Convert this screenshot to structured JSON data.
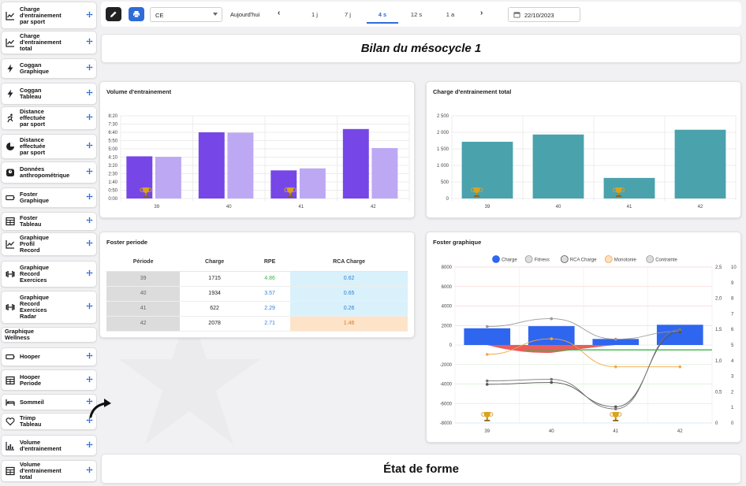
{
  "colors": {
    "accent": "#2f6bd8",
    "volume_bar": "#7647e6",
    "volume_bar_light": "#bda8f3",
    "total_bar": "#4aa2ad",
    "charge_blue": "#2f66ef",
    "negative_red": "#e84a4a",
    "fitness_line": "#999999",
    "rca_line": "#555555",
    "monotonie_line": "#f4a640",
    "contrainte_line": "#777777"
  },
  "sidebar": {
    "items": [
      {
        "label": "Charge\nd'entrainement\npar sport",
        "icon": "trend-chart-icon"
      },
      {
        "label": "Charge\nd'entrainement\ntotal",
        "icon": "trend-chart-icon"
      },
      {
        "label": "Coggan\nGraphique",
        "icon": "lightning-icon"
      },
      {
        "label": "Coggan\nTableau",
        "icon": "lightning-icon"
      },
      {
        "label": "Distance\neffectuée\npar sport",
        "icon": "runner-icon"
      },
      {
        "label": "Distance\neffectuée\npar sport",
        "icon": "pie-chart-icon"
      },
      {
        "label": "Données\nanthropométrique",
        "icon": "scale-icon"
      },
      {
        "label": "Foster\nGraphique",
        "icon": "battery-icon"
      },
      {
        "label": "Foster\nTableau",
        "icon": "table-icon"
      },
      {
        "label": "Graphique\nProfil\nRecord",
        "icon": "trend-chart-icon"
      },
      {
        "label": "Graphique\nRecord\nExercices",
        "icon": "dumbbell-icon"
      },
      {
        "label": "Graphique\nRecord\nExercices\nRadar",
        "icon": "dumbbell-icon"
      },
      {
        "label": "Graphique\nWellness",
        "icon": ""
      },
      {
        "label": "Hooper",
        "icon": "battery-icon"
      },
      {
        "label": "Hooper\nPeriode",
        "icon": "table-icon"
      },
      {
        "label": "Sommeil",
        "icon": "bed-icon"
      },
      {
        "label": "Trimp\nTableau",
        "icon": "heart-icon"
      },
      {
        "label": "Volume\nd'entrainement",
        "icon": "bar-chart-icon"
      },
      {
        "label": "Volume\nd'entrainement\ntotal",
        "icon": "table-icon"
      }
    ]
  },
  "toolbar": {
    "select_value": "CE",
    "today_label": "Aujourd'hui",
    "prev_icon": "chevron-left-icon",
    "next_icon": "chevron-right-icon",
    "periods": [
      "1 j",
      "7 j",
      "4 s",
      "12 s",
      "1 a"
    ],
    "active_period": "4 s",
    "date_value": "22/10/2023"
  },
  "sections": {
    "mesocycle_title": "Bilan du mésocycle 1",
    "form_title": "État de forme"
  },
  "cards": {
    "volume_title": "Volume d'entrainement",
    "total_title": "Charge d'entrainement total",
    "foster_period_title": "Foster periode",
    "foster_graph_title": "Foster graphique"
  },
  "foster_table": {
    "headers": [
      "Période",
      "Charge",
      "RPE",
      "RCA Charge"
    ],
    "rows": [
      {
        "periode": "39",
        "charge": "1715",
        "rpe": "4.86",
        "rca": "0.62",
        "rpe_color": "#3bb54a",
        "rca_warn": false
      },
      {
        "periode": "40",
        "charge": "1934",
        "rpe": "3.57",
        "rca": "0.65",
        "rpe_color": "#2f7fd8",
        "rca_warn": false
      },
      {
        "periode": "41",
        "charge": "622",
        "rpe": "2.29",
        "rca": "0.26",
        "rpe_color": "#2f7fd8",
        "rca_warn": false
      },
      {
        "periode": "42",
        "charge": "2078",
        "rpe": "2.71",
        "rca": "1.46",
        "rpe_color": "#2f7fd8",
        "rca_warn": true
      }
    ]
  },
  "chart_data": [
    {
      "type": "bar",
      "title": "Volume d'entrainement",
      "categories": [
        "39",
        "40",
        "41",
        "42"
      ],
      "y_ticks": [
        "0:00",
        "0:50",
        "1:40",
        "2:30",
        "3:20",
        "4:10",
        "5:00",
        "5:50",
        "6:40",
        "7:30",
        "8:20"
      ],
      "ylim_minutes": [
        0,
        500
      ],
      "series": [
        {
          "values_minutes": [
            255,
            400,
            170,
            420
          ]
        },
        {
          "values_minutes": [
            252,
            398,
            182,
            305
          ]
        }
      ],
      "trophy_icon": "trophy-icon",
      "trophy_categories": [
        "39",
        "41"
      ]
    },
    {
      "type": "bar",
      "title": "Charge d'entrainement total",
      "categories": [
        "39",
        "40",
        "41",
        "42"
      ],
      "y_ticks": [
        "0",
        "500",
        "1 000",
        "1 500",
        "2 000",
        "2 500"
      ],
      "ylim": [
        0,
        2500
      ],
      "values": [
        1715,
        1934,
        622,
        2078
      ],
      "trophy_icon": "trophy-icon",
      "trophy_categories": [
        "39",
        "41"
      ]
    },
    {
      "type": "line",
      "title": "Foster graphique",
      "legend": [
        "Charge",
        "Fitness",
        "RCA Charge",
        "Monotonie",
        "Contrainte"
      ],
      "categories": [
        "39",
        "40",
        "41",
        "42"
      ],
      "y_left_ticks": [
        "-8000",
        "-6000",
        "-4000",
        "-2000",
        "0",
        "2000",
        "4000",
        "6000",
        "8000"
      ],
      "ylim_left": [
        -8000,
        8000
      ],
      "y_right1_ticks": [
        "0",
        "0,5",
        "1,0",
        "1,5",
        "2,0",
        "2,5"
      ],
      "ylim_right1": [
        0,
        2.5
      ],
      "y_right2_ticks": [
        "0",
        "1",
        "2",
        "3",
        "4",
        "5",
        "6",
        "7",
        "8",
        "9",
        "10"
      ],
      "ylim_right2": [
        0,
        10
      ],
      "series": [
        {
          "name": "Charge",
          "type": "bar",
          "values": [
            1715,
            1934,
            622,
            2078
          ]
        },
        {
          "name": "Fitness",
          "values": [
            1900,
            2700,
            600,
            1400
          ]
        },
        {
          "name": "RCA Charge",
          "values": [
            0.62,
            0.65,
            0.26,
            1.46
          ]
        },
        {
          "name": "Monotonie",
          "values": [
            4.4,
            5.4,
            3.6,
            3.6
          ]
        },
        {
          "name": "Contrainte",
          "values": [
            2.7,
            2.8,
            0.9,
            6.0
          ]
        }
      ],
      "negative_area": {
        "values": [
          0,
          -800,
          0,
          0
        ]
      },
      "trophy_icon": "trophy-icon",
      "trophy_categories": [
        "39",
        "41"
      ]
    }
  ]
}
